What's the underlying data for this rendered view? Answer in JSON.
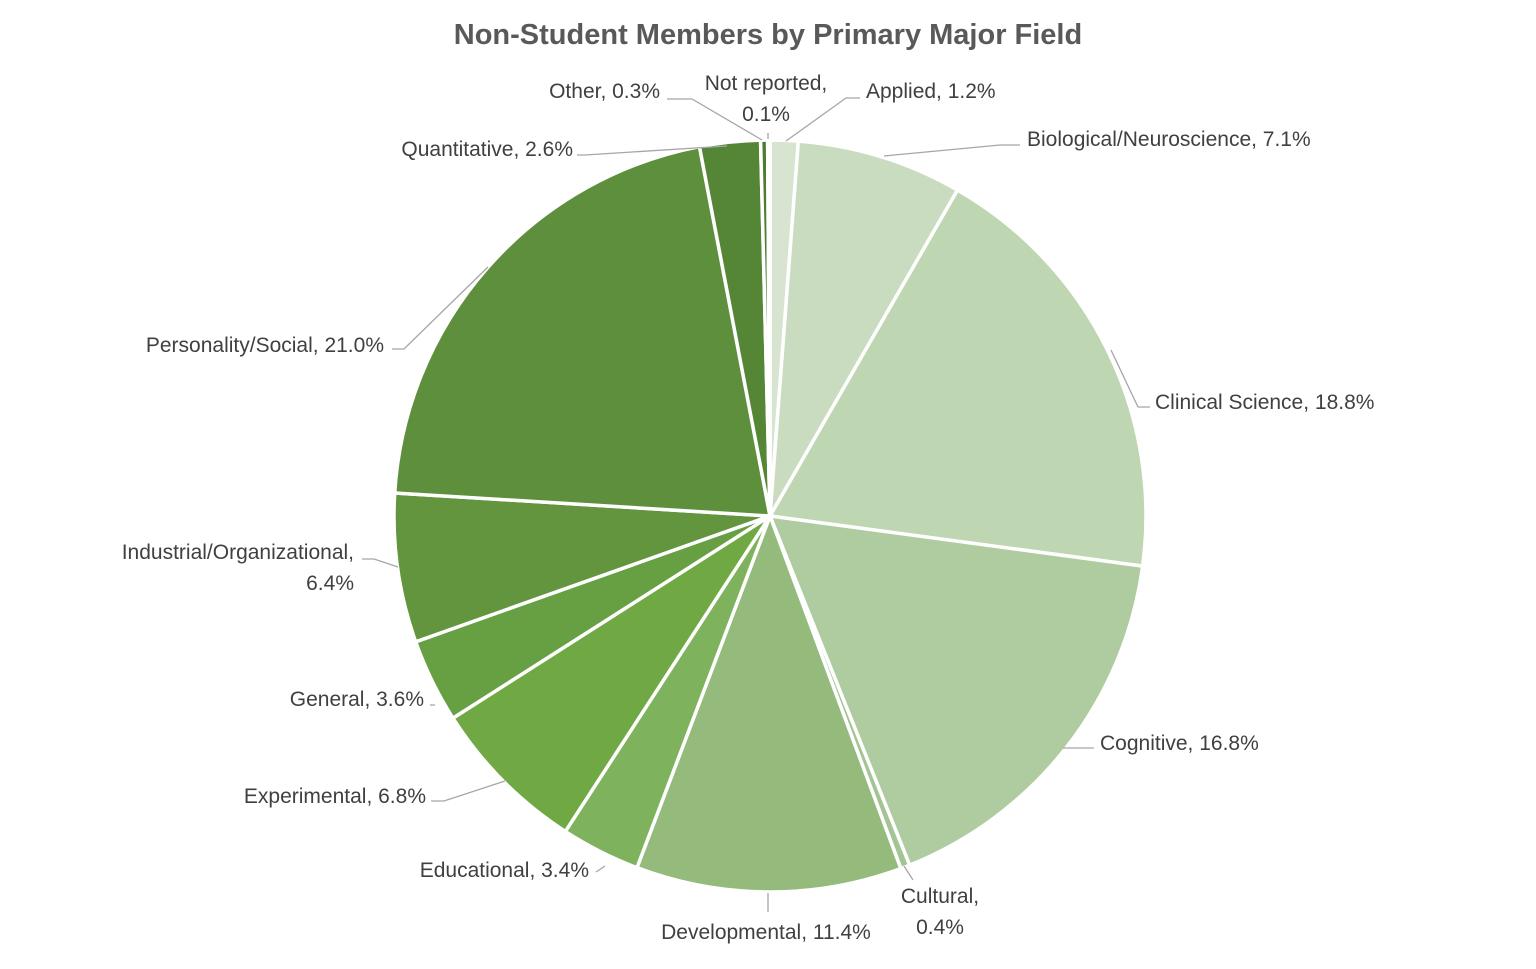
{
  "chart_data": {
    "type": "pie",
    "title": "Non-Student Members by Primary Major Field",
    "slices": [
      {
        "name": "Applied",
        "value": 1.2,
        "color": "#d7e4cf"
      },
      {
        "name": "Biological/Neuroscience",
        "value": 7.1,
        "color": "#cadcc0"
      },
      {
        "name": "Clinical Science",
        "value": 18.8,
        "color": "#bed6b2"
      },
      {
        "name": "Cognitive",
        "value": 16.8,
        "color": "#afcba0"
      },
      {
        "name": "Cultural",
        "value": 0.4,
        "color": "#a3c493"
      },
      {
        "name": "Developmental",
        "value": 11.4,
        "color": "#94bb7c"
      },
      {
        "name": "Educational",
        "value": 3.4,
        "color": "#7fb25c"
      },
      {
        "name": "Experimental",
        "value": 6.8,
        "color": "#70a944"
      },
      {
        "name": "General",
        "value": 3.6,
        "color": "#67a042"
      },
      {
        "name": "Industrial/Organizational",
        "value": 6.4,
        "color": "#62953e"
      },
      {
        "name": "Personality/Social",
        "value": 21.0,
        "color": "#5e8f3c"
      },
      {
        "name": "Quantitative",
        "value": 2.6,
        "color": "#548636"
      },
      {
        "name": "Other",
        "value": 0.3,
        "color": "#4e7d32"
      },
      {
        "name": "Not reported",
        "value": 0.1,
        "color": "#48752e"
      }
    ],
    "labels": [
      "Applied, 1.2%",
      "Biological/Neuroscience, 7.1%",
      "Clinical Science, 18.8%",
      "Cognitive, 16.8%",
      [
        "Cultural,",
        "0.4%"
      ],
      "Developmental, 11.4%",
      "Educational, 3.4%",
      "Experimental, 6.8%",
      "General, 3.6%",
      [
        "Industrial/Organizational,",
        "6.4%"
      ],
      "Personality/Social, 21.0%",
      "Quantitative, 2.6%",
      "Other, 0.3%",
      [
        "Not reported,",
        "0.1%"
      ]
    ]
  }
}
